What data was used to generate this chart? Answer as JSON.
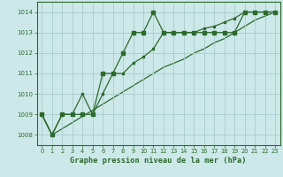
{
  "xlabel": "Graphe pression niveau de la mer (hPa)",
  "bg_color": "#cce8e8",
  "grid_color": "#aacccc",
  "line_color": "#2d6a2d",
  "ylim": [
    1007.5,
    1014.5
  ],
  "xlim": [
    -0.5,
    23.5
  ],
  "yticks": [
    1008,
    1009,
    1010,
    1011,
    1012,
    1013,
    1014
  ],
  "xticks": [
    0,
    1,
    2,
    3,
    4,
    5,
    6,
    7,
    8,
    9,
    10,
    11,
    12,
    13,
    14,
    15,
    16,
    17,
    18,
    19,
    20,
    21,
    22,
    23
  ],
  "series1": [
    1009.0,
    1008.0,
    1009.0,
    1009.0,
    1009.0,
    1009.0,
    1011.0,
    1011.0,
    1012.0,
    1013.0,
    1013.0,
    1014.0,
    1013.0,
    1013.0,
    1013.0,
    1013.0,
    1013.0,
    1013.0,
    1013.0,
    1013.0,
    1014.0,
    1014.0,
    1014.0,
    1014.0
  ],
  "series2": [
    1009.0,
    1008.0,
    1009.0,
    1009.0,
    1010.0,
    1009.0,
    1010.0,
    1011.0,
    1011.0,
    1011.5,
    1011.8,
    1012.2,
    1013.0,
    1013.0,
    1013.0,
    1013.0,
    1013.2,
    1013.3,
    1013.5,
    1013.7,
    1014.0,
    1014.0,
    1014.0,
    1014.0
  ],
  "series3": [
    1009.0,
    1008.0,
    1008.3,
    1008.6,
    1008.9,
    1009.2,
    1009.5,
    1009.8,
    1010.1,
    1010.4,
    1010.7,
    1011.0,
    1011.3,
    1011.5,
    1011.7,
    1012.0,
    1012.2,
    1012.5,
    1012.7,
    1013.0,
    1013.3,
    1013.6,
    1013.8,
    1014.0
  ]
}
